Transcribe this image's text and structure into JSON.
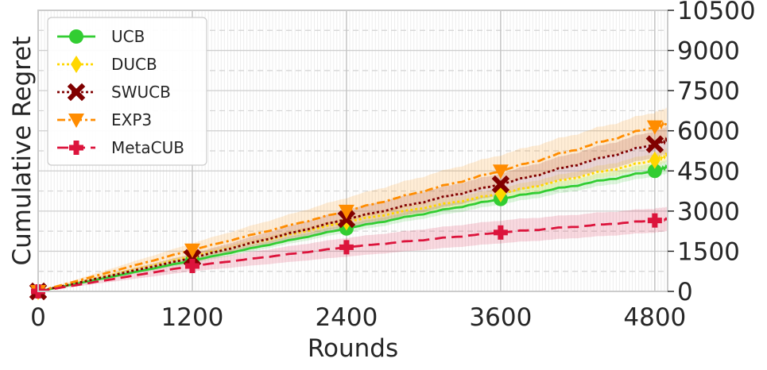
{
  "chart_data": {
    "type": "line",
    "xlabel": "Rounds",
    "ylabel": "Cumulative Regret",
    "xlim": [
      0,
      4900
    ],
    "ylim": [
      0,
      10500
    ],
    "x_ticks": [
      0,
      1200,
      2400,
      3600,
      4800
    ],
    "y_ticks": [
      0,
      1500,
      3000,
      4500,
      6000,
      7500,
      9000,
      10500
    ],
    "y_axis_side": "right",
    "grid": true,
    "legend_position": "top-left",
    "x": [
      0,
      1200,
      2400,
      3600,
      4800,
      4900
    ],
    "series": [
      {
        "name": "UCB",
        "color": "#32cd32",
        "dash": "solid",
        "marker": "circle",
        "values": [
          0,
          1150,
          2350,
          3450,
          4500,
          4650
        ],
        "band": [
          [
            0,
            0
          ],
          [
            1050,
            1250
          ],
          [
            2200,
            2500
          ],
          [
            3250,
            3650
          ],
          [
            4300,
            4800
          ],
          [
            4400,
            4900
          ]
        ]
      },
      {
        "name": "DUCB",
        "color": "#ffd700",
        "dash": "dotted",
        "marker": "diamond",
        "values": [
          0,
          1300,
          2600,
          3650,
          4900,
          5100
        ],
        "band": [
          [
            0,
            0
          ],
          [
            1200,
            1400
          ],
          [
            2450,
            2750
          ],
          [
            3450,
            3850
          ],
          [
            4650,
            5150
          ],
          [
            4850,
            5350
          ]
        ]
      },
      {
        "name": "SWUCB",
        "color": "#800000",
        "dash": "dotted",
        "marker": "x",
        "values": [
          0,
          1250,
          2700,
          4000,
          5500,
          5650
        ],
        "band": [
          [
            0,
            0
          ],
          [
            1100,
            1400
          ],
          [
            2350,
            3050
          ],
          [
            3600,
            4400
          ],
          [
            5000,
            6000
          ],
          [
            5150,
            6150
          ]
        ]
      },
      {
        "name": "EXP3",
        "color": "#ff8c00",
        "dash": "dashdot",
        "marker": "triangle-down",
        "values": [
          0,
          1550,
          3000,
          4500,
          6150,
          6250
        ],
        "band": [
          [
            0,
            0
          ],
          [
            1350,
            1800
          ],
          [
            2600,
            3500
          ],
          [
            3950,
            5100
          ],
          [
            5550,
            6700
          ],
          [
            5650,
            6850
          ]
        ]
      },
      {
        "name": "MetaCUB",
        "color": "#dc143c",
        "dash": "dashed",
        "marker": "plus",
        "values": [
          0,
          950,
          1650,
          2200,
          2650,
          2700
        ],
        "band": [
          [
            0,
            0
          ],
          [
            750,
            1150
          ],
          [
            1300,
            2000
          ],
          [
            1800,
            2650
          ],
          [
            2200,
            3100
          ],
          [
            2250,
            3150
          ]
        ]
      }
    ]
  }
}
